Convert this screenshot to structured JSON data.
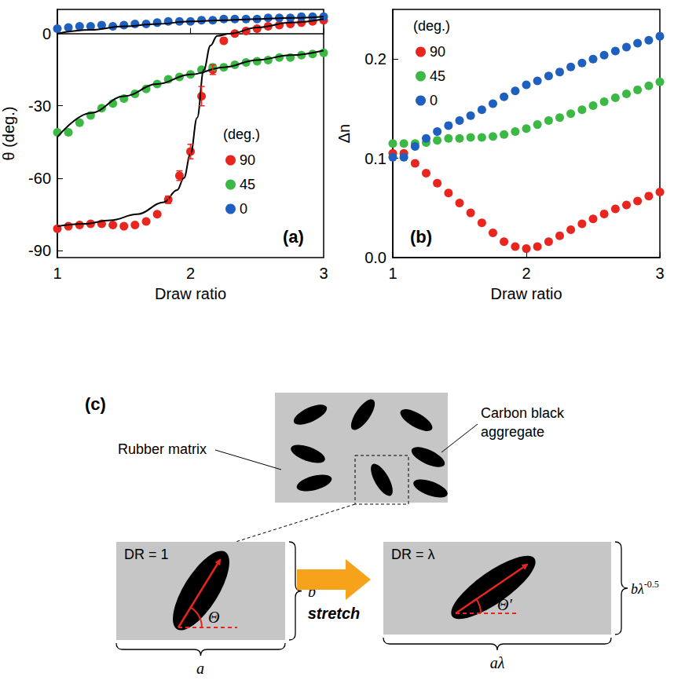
{
  "chart_data": [
    {
      "type": "scatter",
      "title": "(a)",
      "x_label": "Draw ratio",
      "y_label": "θ (deg.)",
      "legend_title": "(deg.)",
      "legend": "right",
      "grid": false,
      "xlim": [
        1,
        3
      ],
      "xticks": [
        1,
        2,
        3
      ],
      "ylim": [
        -93,
        10
      ],
      "yticks": [
        -90,
        -60,
        -30,
        0
      ],
      "series": [
        {
          "name": "90",
          "color": "#e8261f",
          "marker": "circle",
          "x": [
            1,
            1.083,
            1.167,
            1.25,
            1.333,
            1.417,
            1.5,
            1.583,
            1.667,
            1.75,
            1.833,
            1.917,
            2,
            2.083,
            2.167,
            2.25,
            2.333,
            2.417,
            2.5,
            2.583,
            2.667,
            2.75,
            2.833,
            2.917,
            3
          ],
          "values": [
            -81,
            -80,
            -79.5,
            -79,
            -79,
            -79.5,
            -80,
            -79.5,
            -78,
            -75,
            -69,
            -59,
            -49,
            -26,
            -15,
            -3,
            0,
            1,
            2,
            3,
            3.5,
            4,
            4.5,
            5,
            5.5
          ],
          "errors": [
            0,
            0,
            0,
            0,
            0,
            0,
            0,
            0,
            0,
            0,
            1.5,
            2,
            3,
            4,
            2,
            0,
            0,
            0,
            0,
            0,
            0,
            0,
            0,
            0,
            0
          ]
        },
        {
          "name": "45",
          "color": "#3cb944",
          "marker": "circle",
          "x": [
            1,
            1.083,
            1.167,
            1.25,
            1.333,
            1.417,
            1.5,
            1.583,
            1.667,
            1.75,
            1.833,
            1.917,
            2,
            2.083,
            2.167,
            2.25,
            2.333,
            2.417,
            2.5,
            2.583,
            2.667,
            2.75,
            2.833,
            2.917,
            3
          ],
          "values": [
            -41,
            -41,
            -37,
            -34,
            -31,
            -29,
            -27,
            -25,
            -23,
            -21,
            -19,
            -18,
            -17,
            -15,
            -14,
            -14,
            -13,
            -12,
            -11.5,
            -11,
            -10,
            -10,
            -9,
            -8.5,
            -8
          ]
        },
        {
          "name": "0",
          "color": "#1f5fbf",
          "marker": "circle",
          "x": [
            1,
            1.083,
            1.167,
            1.25,
            1.333,
            1.417,
            1.5,
            1.583,
            1.667,
            1.75,
            1.833,
            1.917,
            2,
            2.083,
            2.167,
            2.25,
            2.333,
            2.417,
            2.5,
            2.583,
            2.667,
            2.75,
            2.833,
            2.917,
            3
          ],
          "values": [
            2,
            2.5,
            3,
            3,
            3.5,
            3,
            3.5,
            4,
            4,
            4.5,
            5,
            5,
            5,
            5.5,
            5.5,
            6,
            6,
            6,
            6,
            6.5,
            6.5,
            6.5,
            7,
            7,
            7
          ]
        },
        {
          "type": "line",
          "color": "#000000",
          "line_style": "solid",
          "x": [
            1,
            1.2,
            1.4,
            1.6,
            1.8,
            1.9,
            1.95,
            2,
            2.05,
            2.1,
            2.15,
            2.2,
            2.3,
            2.5,
            2.75,
            3
          ],
          "values": [
            -80,
            -79,
            -77.5,
            -75,
            -70,
            -65,
            -60,
            -50,
            -35,
            -15,
            -5,
            -1,
            0,
            2.5,
            4.5,
            6
          ]
        },
        {
          "type": "line",
          "color": "#000000",
          "line_style": "solid",
          "x": [
            1,
            1.25,
            1.5,
            1.75,
            2,
            2.25,
            2.5,
            2.75,
            3
          ],
          "values": [
            -43,
            -33,
            -26,
            -21,
            -17,
            -14,
            -11,
            -9,
            -7
          ]
        },
        {
          "type": "line",
          "color": "#000000",
          "line_style": "solid",
          "x": [
            1,
            1.25,
            1.5,
            1.75,
            2,
            2.25,
            2.5,
            2.75,
            3
          ],
          "values": [
            0,
            1.5,
            3,
            4,
            5,
            5.5,
            6,
            6.5,
            7
          ]
        }
      ]
    },
    {
      "type": "scatter",
      "title": "(b)",
      "x_label": "Draw ratio",
      "y_label": "Δn",
      "legend_title": "(deg.)",
      "legend": "upper left",
      "grid": false,
      "xlim": [
        1,
        3
      ],
      "xticks": [
        1,
        2,
        3
      ],
      "ylim": [
        0,
        0.25
      ],
      "yticks": [
        {
          "value": 0,
          "label": "0.0"
        },
        0.1,
        0.2
      ],
      "series": [
        {
          "name": "90",
          "color": "#e8261f",
          "marker": "circle",
          "x": [
            1,
            1.083,
            1.167,
            1.25,
            1.333,
            1.417,
            1.5,
            1.583,
            1.667,
            1.75,
            1.833,
            1.917,
            2,
            2.083,
            2.167,
            2.25,
            2.333,
            2.417,
            2.5,
            2.583,
            2.667,
            2.75,
            2.833,
            2.917,
            3
          ],
          "values": [
            0.105,
            0.105,
            0.095,
            0.085,
            0.075,
            0.065,
            0.055,
            0.045,
            0.035,
            0.025,
            0.016,
            0.011,
            0.009,
            0.011,
            0.016,
            0.022,
            0.028,
            0.034,
            0.039,
            0.044,
            0.049,
            0.053,
            0.057,
            0.062,
            0.066
          ]
        },
        {
          "name": "45",
          "color": "#3cb944",
          "marker": "circle",
          "x": [
            1,
            1.083,
            1.167,
            1.25,
            1.333,
            1.417,
            1.5,
            1.583,
            1.667,
            1.75,
            1.833,
            1.917,
            2,
            2.083,
            2.167,
            2.25,
            2.333,
            2.417,
            2.5,
            2.583,
            2.667,
            2.75,
            2.833,
            2.917,
            3
          ],
          "values": [
            0.115,
            0.115,
            0.115,
            0.116,
            0.118,
            0.12,
            0.12,
            0.121,
            0.121,
            0.122,
            0.124,
            0.127,
            0.13,
            0.134,
            0.138,
            0.141,
            0.145,
            0.149,
            0.153,
            0.157,
            0.161,
            0.165,
            0.169,
            0.173,
            0.177
          ]
        },
        {
          "name": "0",
          "color": "#1f5fbf",
          "marker": "circle",
          "x": [
            1,
            1.083,
            1.167,
            1.25,
            1.333,
            1.417,
            1.5,
            1.583,
            1.667,
            1.75,
            1.833,
            1.917,
            2,
            2.083,
            2.167,
            2.25,
            2.333,
            2.417,
            2.5,
            2.583,
            2.667,
            2.75,
            2.833,
            2.917,
            3
          ],
          "values": [
            0.101,
            0.101,
            0.112,
            0.12,
            0.127,
            0.133,
            0.138,
            0.143,
            0.149,
            0.155,
            0.162,
            0.168,
            0.174,
            0.178,
            0.183,
            0.187,
            0.192,
            0.196,
            0.2,
            0.204,
            0.208,
            0.212,
            0.216,
            0.219,
            0.223
          ]
        }
      ]
    }
  ],
  "diagram": {
    "label": "(c)",
    "matrix_label": "Rubber matrix",
    "aggregate_label": "Carbon black aggregate",
    "stretch_label": "stretch",
    "before": {
      "label": "DR = 1",
      "angle": "Θ",
      "width": "a",
      "height": "b"
    },
    "after": {
      "label": "DR = λ",
      "angle": "Θ′",
      "width": "aλ",
      "height": {
        "base": "bλ",
        "sup": "-0.5"
      }
    }
  }
}
